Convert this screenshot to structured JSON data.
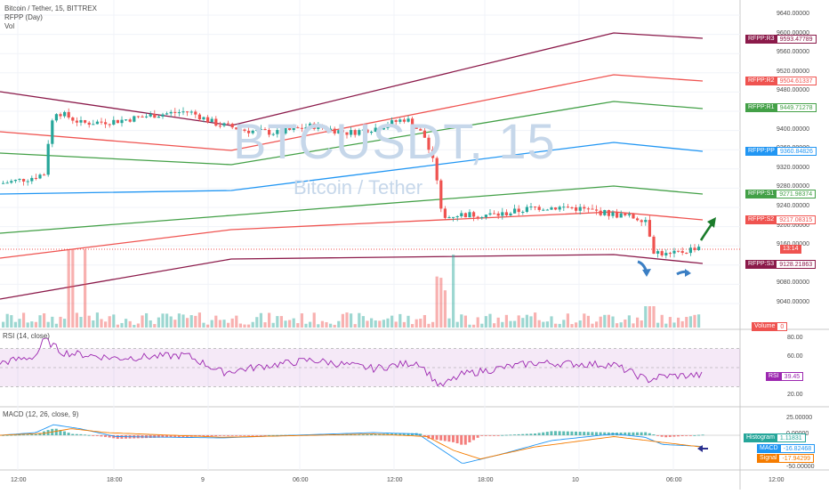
{
  "legend": {
    "symbol": "Bitcoin / Tether, 15, BITTREX",
    "indicator": "RFPP (Day)",
    "volume": "Vol"
  },
  "watermark": {
    "ticker": "BTCUSDT, 15",
    "name": "Bitcoin / Tether"
  },
  "price_axis": {
    "ticks": [
      "9640.00000",
      "9600.00000",
      "9560.00000",
      "9520.00000",
      "9480.00000",
      "9440.00000",
      "9400.00000",
      "9360.00000",
      "9320.00000",
      "9280.00000",
      "9240.00000",
      "9200.00000",
      "9160.00000",
      "9120.00000",
      "9080.00000",
      "9040.00000"
    ],
    "current_time_label": "13:14",
    "volume_label": "Volume",
    "volume_value": "0"
  },
  "pivot_levels": [
    {
      "key": "RFPP:R3",
      "value": "9593.47789",
      "color": "#8b1a4a"
    },
    {
      "key": "RFPP:R2",
      "value": "9504.61337",
      "color": "#ef5350"
    },
    {
      "key": "RFPP:R1",
      "value": "9449.71278",
      "color": "#43a047"
    },
    {
      "key": "RFPP:PP",
      "value": "9360.84826",
      "color": "#2196f3"
    },
    {
      "key": "RFPP:S1",
      "value": "9271.98374",
      "color": "#43a047"
    },
    {
      "key": "RFPP:S2",
      "value": "9217.08315",
      "color": "#ef5350"
    },
    {
      "key": "RFPP:S3",
      "value": "9128.21863",
      "color": "#8b1a4a"
    }
  ],
  "rsi": {
    "title": "RSI (14, close)",
    "ticks": [
      "80.00",
      "60.00",
      "40.00",
      "20.00"
    ],
    "label": "RSI",
    "value": "39.45",
    "color": "#9c27b0"
  },
  "macd": {
    "title": "MACD (12, 26, close, 9)",
    "ticks": [
      "25.00000",
      "0.00000",
      "-25.00000",
      "-50.00000"
    ],
    "histogram": {
      "label": "Histogram",
      "value": "1.11831",
      "color": "#26a69a"
    },
    "macd": {
      "label": "MACD",
      "value": "-16.82468",
      "color": "#2196f3"
    },
    "signal": {
      "label": "Signal",
      "value": "-17.94299",
      "color": "#f57c00"
    }
  },
  "time_axis": {
    "labels": [
      "12:00",
      "18:00",
      "9",
      "06:00",
      "12:00",
      "18:00",
      "10",
      "06:00",
      "12:00"
    ]
  },
  "colors": {
    "up": "#26a69a",
    "down": "#ef5350",
    "arrow_up": "#1b7c2b",
    "arrow_markers": "#3b7fc4",
    "signal_arrow": "#2b2f8f"
  },
  "icons": [
    "trend-up-arrow-icon",
    "bounce-arrow-icon",
    "signal-arrow-icon"
  ]
}
